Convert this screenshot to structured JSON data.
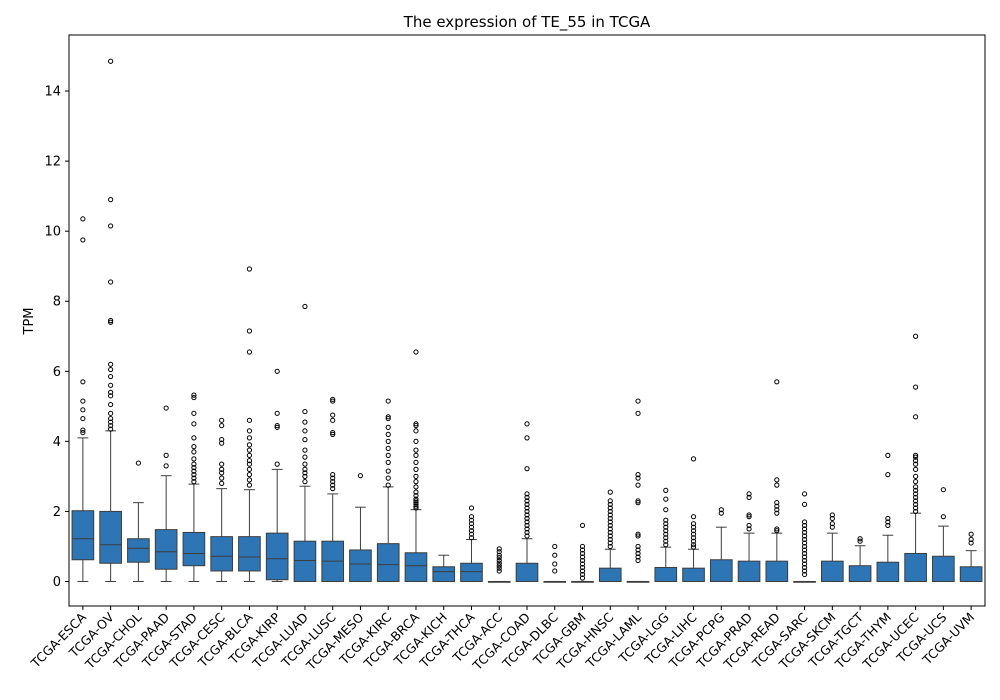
{
  "chart_data": {
    "type": "box",
    "title": "The expression of TE_55 in TCGA",
    "xlabel": "",
    "ylabel": "TPM",
    "ylim": [
      -0.7,
      15.6
    ],
    "yticks": [
      0,
      2,
      4,
      6,
      8,
      10,
      12,
      14
    ],
    "grid": false,
    "box_color": "#2e75b6",
    "categories": [
      "TCGA-ESCA",
      "TCGA-OV",
      "TCGA-CHOL",
      "TCGA-PAAD",
      "TCGA-STAD",
      "TCGA-CESC",
      "TCGA-BLCA",
      "TCGA-KIRP",
      "TCGA-LUAD",
      "TCGA-LUSC",
      "TCGA-MESO",
      "TCGA-KIRC",
      "TCGA-BRCA",
      "TCGA-KICH",
      "TCGA-THCA",
      "TCGA-ACC",
      "TCGA-COAD",
      "TCGA-DLBC",
      "TCGA-GBM",
      "TCGA-HNSC",
      "TCGA-LAML",
      "TCGA-LGG",
      "TCGA-LIHC",
      "TCGA-PCPG",
      "TCGA-PRAD",
      "TCGA-READ",
      "TCGA-SARC",
      "TCGA-SKCM",
      "TCGA-TGCT",
      "TCGA-THYM",
      "TCGA-UCEC",
      "TCGA-UCS",
      "TCGA-UVM"
    ],
    "boxes": [
      {
        "whisker_low": 0,
        "q1": 0.62,
        "median": 1.22,
        "q3": 2.02,
        "whisker_high": 4.1,
        "outliers": [
          4.25,
          4.32,
          4.65,
          4.9,
          5.15,
          5.7,
          9.75,
          10.35
        ]
      },
      {
        "whisker_low": 0,
        "q1": 0.52,
        "median": 1.05,
        "q3": 2.0,
        "whisker_high": 4.3,
        "outliers": [
          4.35,
          4.45,
          4.55,
          4.65,
          4.8,
          5.05,
          5.3,
          5.4,
          5.6,
          5.85,
          6.05,
          6.2,
          7.4,
          7.45,
          8.55,
          10.15,
          10.9,
          14.85
        ]
      },
      {
        "whisker_low": 0,
        "q1": 0.55,
        "median": 0.95,
        "q3": 1.22,
        "whisker_high": 2.25,
        "outliers": [
          3.38
        ]
      },
      {
        "whisker_low": 0,
        "q1": 0.35,
        "median": 0.85,
        "q3": 1.48,
        "whisker_high": 3.02,
        "outliers": [
          3.3,
          3.6,
          4.95
        ]
      },
      {
        "whisker_low": 0,
        "q1": 0.45,
        "median": 0.8,
        "q3": 1.4,
        "whisker_high": 2.78,
        "outliers": [
          2.85,
          2.95,
          3.05,
          3.15,
          3.25,
          3.35,
          3.5,
          3.7,
          3.85,
          4.1,
          4.5,
          4.8,
          5.25,
          5.32
        ]
      },
      {
        "whisker_low": 0,
        "q1": 0.3,
        "median": 0.72,
        "q3": 1.28,
        "whisker_high": 2.65,
        "outliers": [
          2.8,
          2.95,
          3.1,
          3.2,
          3.35,
          3.95,
          4.05,
          4.45,
          4.6
        ]
      },
      {
        "whisker_low": 0,
        "q1": 0.3,
        "median": 0.7,
        "q3": 1.28,
        "whisker_high": 2.62,
        "outliers": [
          2.75,
          2.9,
          3.05,
          3.2,
          3.35,
          3.45,
          3.6,
          3.75,
          3.9,
          4.1,
          4.3,
          4.6,
          6.55,
          7.15,
          8.92
        ]
      },
      {
        "whisker_low": 0,
        "q1": 0.05,
        "median": 0.65,
        "q3": 1.38,
        "whisker_high": 3.2,
        "outliers": [
          3.35,
          4.4,
          4.45,
          4.8,
          6.0
        ]
      },
      {
        "whisker_low": 0,
        "q1": 0.0,
        "median": 0.6,
        "q3": 1.15,
        "whisker_high": 2.72,
        "outliers": [
          2.85,
          3.0,
          3.1,
          3.2,
          3.35,
          3.55,
          3.75,
          4.05,
          4.3,
          4.55,
          4.85,
          7.85
        ]
      },
      {
        "whisker_low": 0,
        "q1": 0.0,
        "median": 0.58,
        "q3": 1.15,
        "whisker_high": 2.5,
        "outliers": [
          2.65,
          2.75,
          2.85,
          2.95,
          3.05,
          4.2,
          4.25,
          4.6,
          4.75,
          5.15,
          5.2
        ]
      },
      {
        "whisker_low": 0,
        "q1": 0.0,
        "median": 0.5,
        "q3": 0.9,
        "whisker_high": 2.12,
        "outliers": [
          3.02
        ]
      },
      {
        "whisker_low": 0,
        "q1": 0.0,
        "median": 0.48,
        "q3": 1.08,
        "whisker_high": 2.7,
        "outliers": [
          2.75,
          2.95,
          3.15,
          3.4,
          3.6,
          3.8,
          4.0,
          4.2,
          4.4,
          4.65,
          4.7,
          5.15
        ]
      },
      {
        "whisker_low": 0,
        "q1": 0.0,
        "median": 0.45,
        "q3": 0.82,
        "whisker_high": 2.05,
        "outliers": [
          2.1,
          2.15,
          2.2,
          2.25,
          2.3,
          2.35,
          2.45,
          2.55,
          2.7,
          2.85,
          3.0,
          3.2,
          3.4,
          3.6,
          3.75,
          4.0,
          4.3,
          4.45,
          4.5,
          6.55
        ]
      },
      {
        "whisker_low": 0,
        "q1": 0.0,
        "median": 0.28,
        "q3": 0.42,
        "whisker_high": 0.75,
        "outliers": []
      },
      {
        "whisker_low": 0,
        "q1": 0.0,
        "median": 0.28,
        "q3": 0.52,
        "whisker_high": 1.2,
        "outliers": [
          1.25,
          1.35,
          1.45,
          1.55,
          1.65,
          1.75,
          1.85,
          2.1
        ]
      },
      {
        "whisker_low": 0,
        "q1": 0.0,
        "median": 0.0,
        "q3": 0.0,
        "whisker_high": 0.0,
        "outliers": [
          0.3,
          0.38,
          0.45,
          0.52,
          0.6,
          0.68,
          0.75,
          0.85,
          0.93
        ]
      },
      {
        "whisker_low": 0,
        "q1": 0.0,
        "median": 0.0,
        "q3": 0.52,
        "whisker_high": 1.22,
        "outliers": [
          1.3,
          1.4,
          1.5,
          1.6,
          1.7,
          1.8,
          1.9,
          2.0,
          2.1,
          2.2,
          2.3,
          2.4,
          2.5,
          3.22,
          4.1,
          4.5
        ]
      },
      {
        "whisker_low": 0,
        "q1": 0.0,
        "median": 0.0,
        "q3": 0.0,
        "whisker_high": 0.0,
        "outliers": [
          0.3,
          0.5,
          0.75,
          1.0
        ]
      },
      {
        "whisker_low": 0,
        "q1": 0.0,
        "median": 0.0,
        "q3": 0.0,
        "whisker_high": 0.0,
        "outliers": [
          0.1,
          0.2,
          0.3,
          0.4,
          0.5,
          0.6,
          0.7,
          0.8,
          0.9,
          1.0,
          1.6
        ]
      },
      {
        "whisker_low": 0,
        "q1": 0.0,
        "median": 0.0,
        "q3": 0.38,
        "whisker_high": 0.92,
        "outliers": [
          1.0,
          1.1,
          1.2,
          1.3,
          1.4,
          1.5,
          1.6,
          1.7,
          1.8,
          1.9,
          2.0,
          2.1,
          2.2,
          2.3,
          2.55
        ]
      },
      {
        "whisker_low": 0,
        "q1": 0.0,
        "median": 0.0,
        "q3": 0.0,
        "whisker_high": 0.0,
        "outliers": [
          0.6,
          0.7,
          0.8,
          0.9,
          1.0,
          1.3,
          1.35,
          2.25,
          2.3,
          2.75,
          2.95,
          3.05,
          4.8,
          5.15
        ]
      },
      {
        "whisker_low": 0,
        "q1": 0.0,
        "median": 0.0,
        "q3": 0.4,
        "whisker_high": 0.98,
        "outliers": [
          1.05,
          1.15,
          1.25,
          1.35,
          1.45,
          1.55,
          1.65,
          1.75,
          2.05,
          2.35,
          2.6
        ]
      },
      {
        "whisker_low": 0,
        "q1": 0.0,
        "median": 0.0,
        "q3": 0.38,
        "whisker_high": 0.92,
        "outliers": [
          0.98,
          1.05,
          1.15,
          1.25,
          1.35,
          1.45,
          1.55,
          1.65,
          1.85,
          3.5
        ]
      },
      {
        "whisker_low": 0,
        "q1": 0.0,
        "median": 0.0,
        "q3": 0.62,
        "whisker_high": 1.55,
        "outliers": [
          1.95,
          2.05
        ]
      },
      {
        "whisker_low": 0,
        "q1": 0.0,
        "median": 0.0,
        "q3": 0.58,
        "whisker_high": 1.38,
        "outliers": [
          1.5,
          1.6,
          1.85,
          1.9,
          2.4,
          2.5
        ]
      },
      {
        "whisker_low": 0,
        "q1": 0.0,
        "median": 0.0,
        "q3": 0.58,
        "whisker_high": 1.38,
        "outliers": [
          1.45,
          1.5,
          1.95,
          2.05,
          2.15,
          2.25,
          2.75,
          2.9,
          5.7
        ]
      },
      {
        "whisker_low": 0,
        "q1": 0.0,
        "median": 0.0,
        "q3": 0.0,
        "whisker_high": 0.0,
        "outliers": [
          0.2,
          0.3,
          0.4,
          0.5,
          0.6,
          0.7,
          0.8,
          0.9,
          1.0,
          1.1,
          1.2,
          1.3,
          1.4,
          1.5,
          1.6,
          1.7,
          2.2,
          2.5
        ]
      },
      {
        "whisker_low": 0,
        "q1": 0.0,
        "median": 0.0,
        "q3": 0.58,
        "whisker_high": 1.38,
        "outliers": [
          1.55,
          1.65,
          1.8,
          1.9
        ]
      },
      {
        "whisker_low": 0,
        "q1": 0.0,
        "median": 0.0,
        "q3": 0.45,
        "whisker_high": 1.02,
        "outliers": [
          1.15,
          1.22
        ]
      },
      {
        "whisker_low": 0,
        "q1": 0.0,
        "median": 0.0,
        "q3": 0.55,
        "whisker_high": 1.32,
        "outliers": [
          1.6,
          1.7,
          1.8,
          3.05,
          3.6
        ]
      },
      {
        "whisker_low": 0,
        "q1": 0.0,
        "median": 0.0,
        "q3": 0.8,
        "whisker_high": 1.95,
        "outliers": [
          2.0,
          2.1,
          2.2,
          2.3,
          2.4,
          2.5,
          2.6,
          2.7,
          2.85,
          3.0,
          3.2,
          3.35,
          3.45,
          3.55,
          3.6,
          4.7,
          5.55,
          7.0
        ]
      },
      {
        "whisker_low": 0,
        "q1": 0.0,
        "median": 0.0,
        "q3": 0.72,
        "whisker_high": 1.58,
        "outliers": [
          1.85,
          2.62
        ]
      },
      {
        "whisker_low": 0,
        "q1": 0.0,
        "median": 0.0,
        "q3": 0.42,
        "whisker_high": 0.88,
        "outliers": [
          1.1,
          1.2,
          1.35
        ]
      }
    ]
  }
}
